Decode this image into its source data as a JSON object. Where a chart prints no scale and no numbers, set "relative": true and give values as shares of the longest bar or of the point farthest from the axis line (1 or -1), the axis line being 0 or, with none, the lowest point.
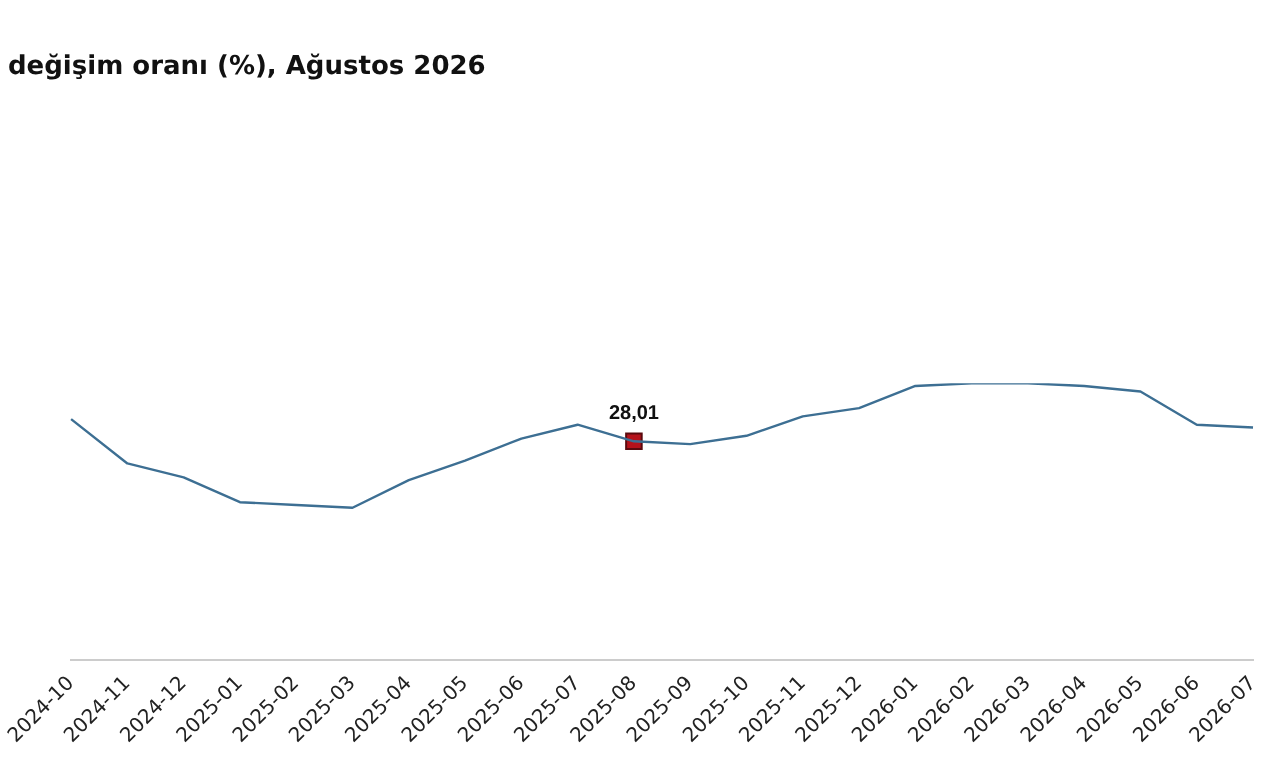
{
  "chart_data": {
    "type": "line",
    "title": "değişim oranı (%), Ağustos 2026",
    "relative": true,
    "grid": false,
    "legend": false,
    "tick_labels": "x",
    "categories": [
      "2024-10",
      "2024-11",
      "2024-12",
      "2025-01",
      "2025-02",
      "2025-03",
      "2025-04",
      "2025-05",
      "2025-06",
      "2025-07",
      "2025-08",
      "2025-09",
      "2025-10",
      "2025-11",
      "2025-12",
      "2026-01",
      "2026-02",
      "2026-03",
      "2026-04",
      "2026-05",
      "2026-06",
      "2026-07"
    ],
    "series": [
      {
        "color": "#3d6f93",
        "marker": "none",
        "values": [
          0.87,
          0.71,
          0.66,
          0.57,
          0.56,
          0.55,
          0.65,
          0.72,
          0.8,
          0.85,
          0.79,
          0.78,
          0.81,
          0.88,
          0.91,
          0.99,
          1,
          1,
          0.99,
          0.97,
          0.85,
          0.84
        ]
      },
      {
        "type": "scatter",
        "color": "#b5121b",
        "marker": "square",
        "values": [
          null,
          null,
          null,
          null,
          null,
          null,
          null,
          null,
          null,
          null,
          0.79,
          null,
          null,
          null,
          null,
          null,
          null,
          null,
          null,
          null,
          null,
          null
        ]
      }
    ],
    "annotations": [
      {
        "text": "28,01",
        "x": "2025-08",
        "y": 0.79
      }
    ]
  }
}
